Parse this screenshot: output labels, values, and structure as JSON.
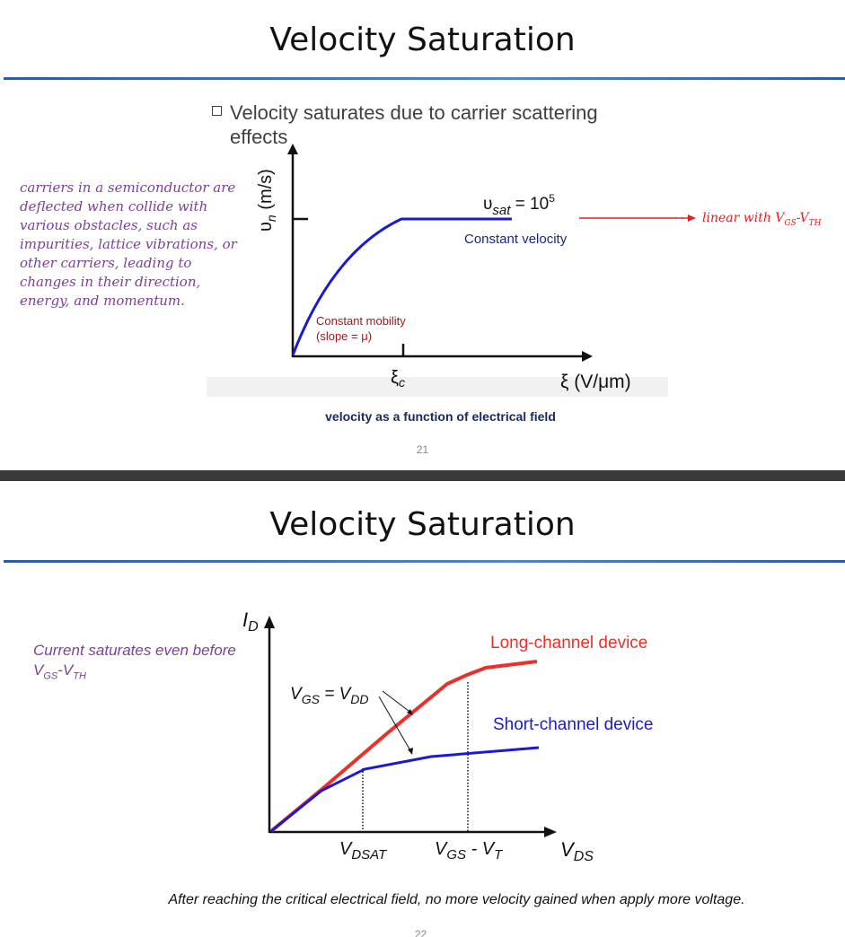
{
  "slide1": {
    "title": "Velocity Saturation",
    "bullet": "Velocity saturates due to carrier scattering effects",
    "side_note": "carriers in a semiconductor are deflected when collide with various obstacles, such as impurities, lattice vibrations, or other carriers, leading to changes in their direction, energy, and momentum.",
    "red_note": {
      "prefix": "linear with V",
      "sub1": "GS",
      "mid": "-V",
      "sub2": "TH"
    },
    "caption": "velocity as a function of electrical field",
    "page": "21",
    "chart": {
      "y_label": {
        "main": "υ",
        "sub": "n",
        "rest": " (m/s)"
      },
      "x_label": "ξ (V/μm)",
      "critical_label": {
        "main": "ξ",
        "sub": "c"
      },
      "vsat_label": {
        "main": "υ",
        "sub": "sat",
        "rest": " = 10",
        "sup": "5"
      },
      "constant_velocity": "Constant velocity",
      "constant_mobility": "Constant mobility",
      "slope": "(slope = μ)"
    }
  },
  "slide2": {
    "title": "Velocity Saturation",
    "side_note": {
      "line1": "Current saturates even before",
      "prefix": "V",
      "sub1": "GS",
      "mid": "-V",
      "sub2": "TH"
    },
    "bottom_note": "After reaching the critical electrical field, no more velocity gained when apply more voltage.",
    "page": "22",
    "chart": {
      "y_label": {
        "main": "I",
        "sub": "D"
      },
      "x_label": {
        "main": "V",
        "sub": "DS"
      },
      "vdsat_label": {
        "main": "V",
        "sub": "DSAT"
      },
      "vgs_vt_label": {
        "a": "V",
        "a_sub": "GS",
        "mid": " - V",
        "b_sub": "T"
      },
      "vgs_vdd_label": {
        "a": "V",
        "a_sub": "GS",
        "mid": " = V",
        "b_sub": "DD"
      },
      "long_channel": "Long-channel device",
      "short_channel": "Short-channel device",
      "colors": {
        "long": "#e8312a",
        "short": "#1a1ad0"
      }
    }
  },
  "colors": {
    "accent_blue": "#2e5aa8",
    "note_purple": "#7b3f9b",
    "note_red": "#e02020",
    "curve_blue": "#1a1ad0",
    "mobility_red": "#a01818"
  }
}
